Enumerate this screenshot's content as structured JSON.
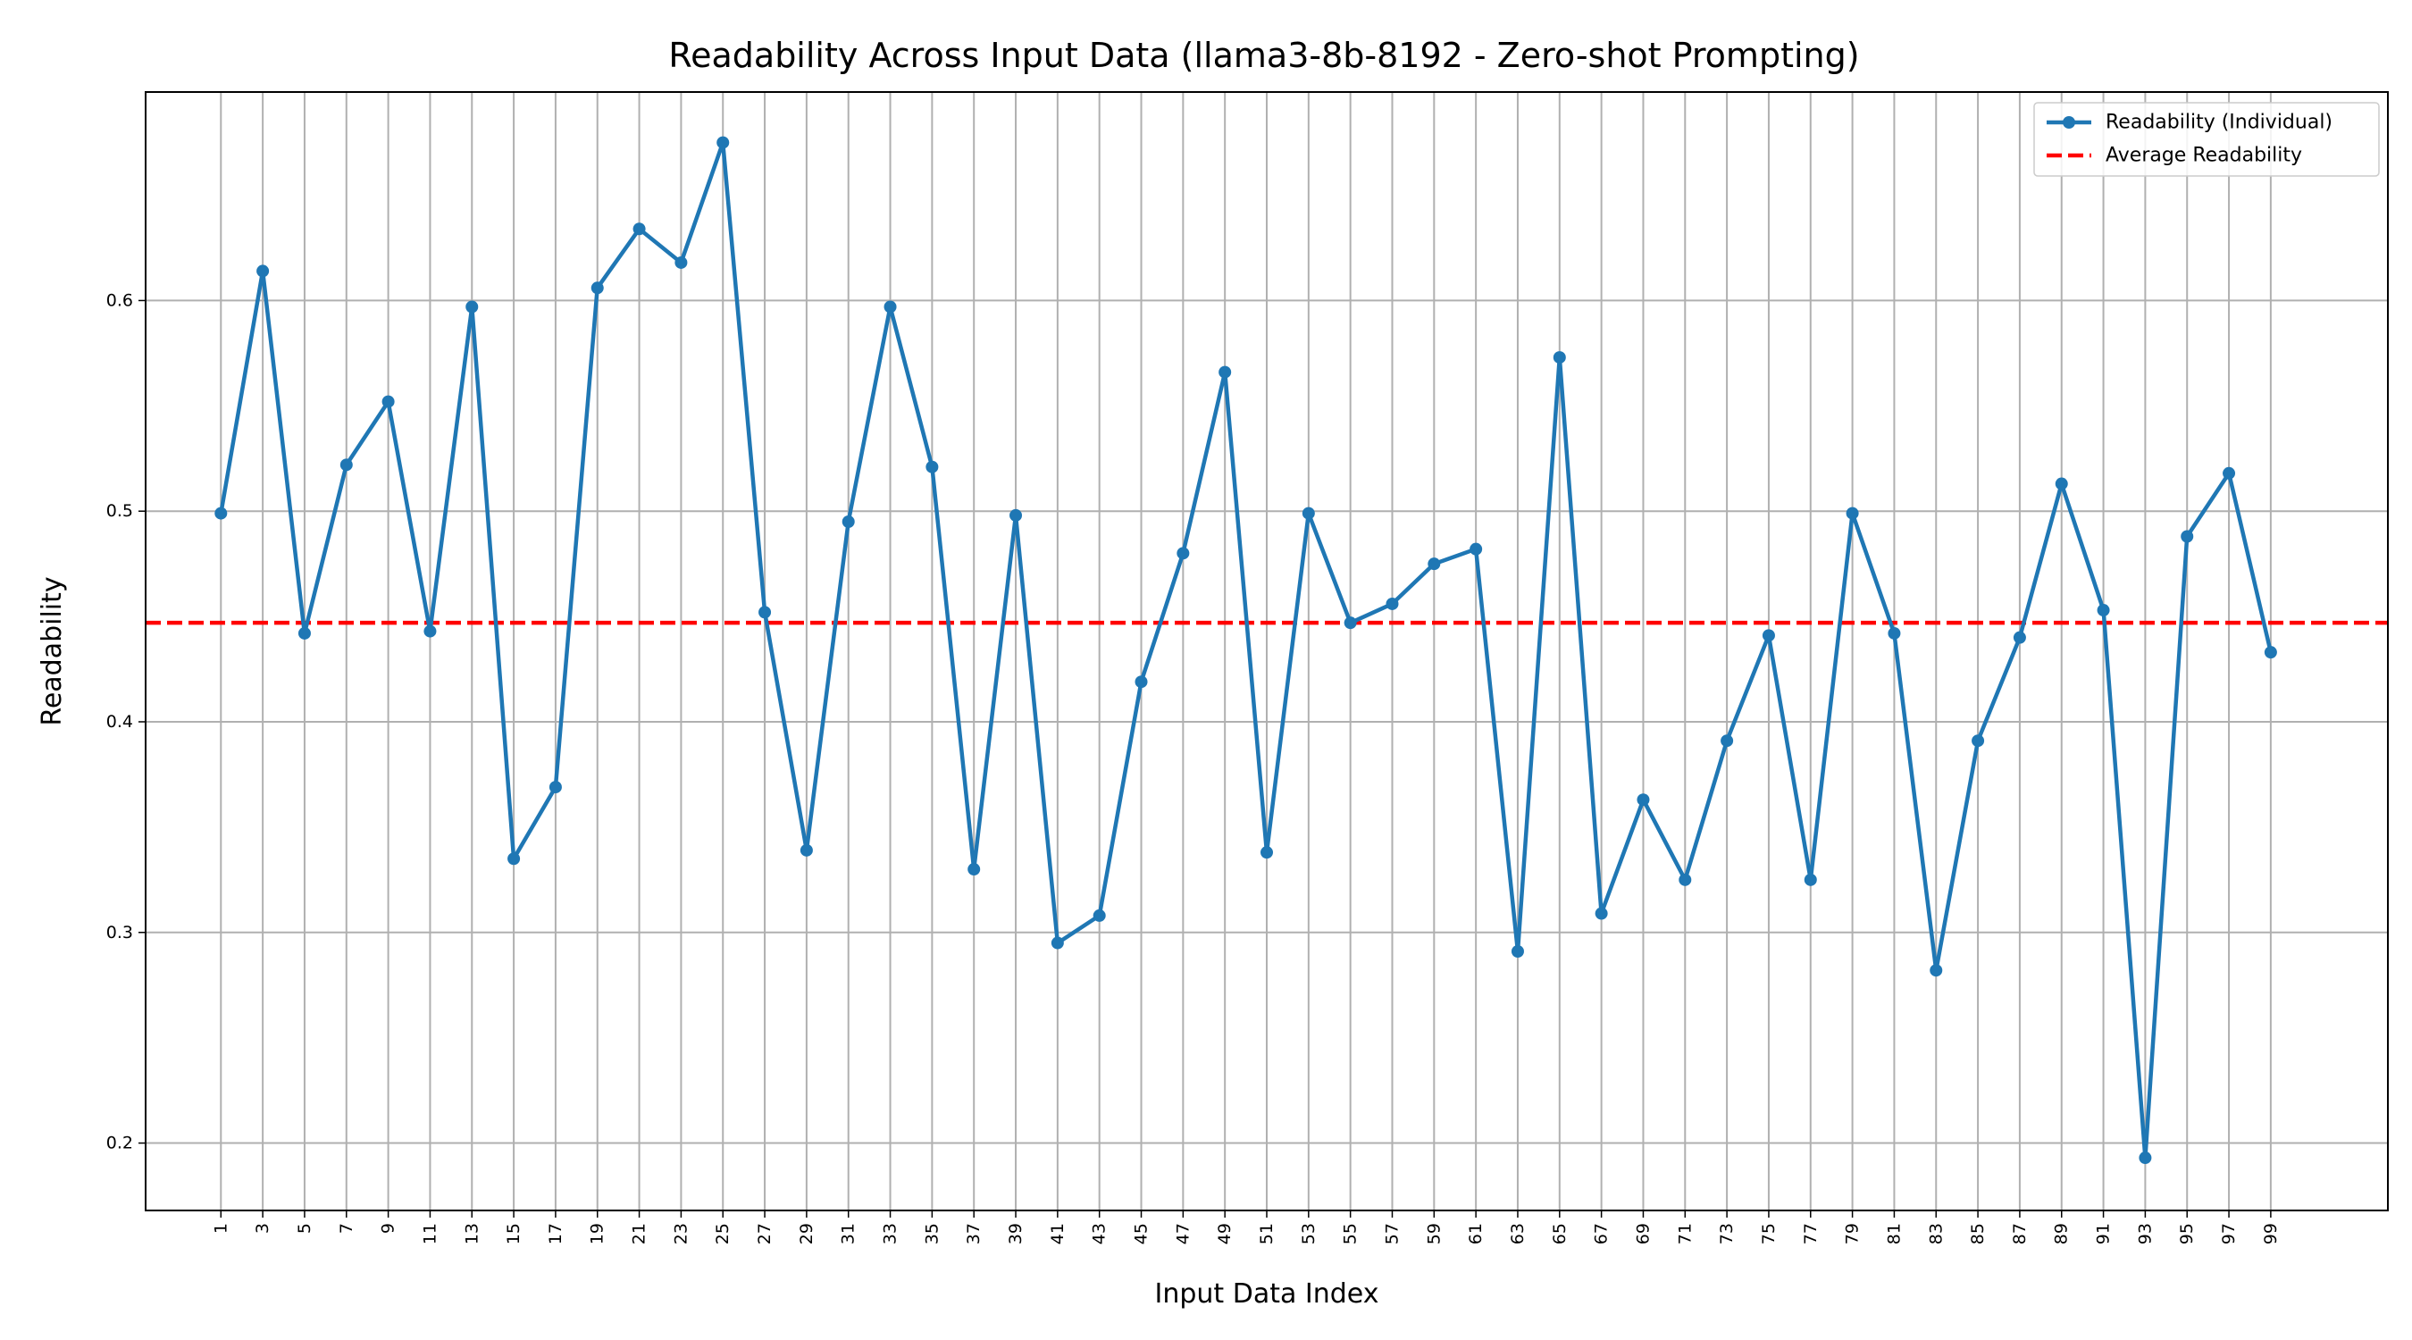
{
  "chart_data": {
    "type": "line",
    "title": "Readability Across Input Data (llama3-8b-8192 - Zero-shot Prompting)",
    "xlabel": "Input Data Index",
    "ylabel": "Readability",
    "x": [
      1,
      3,
      5,
      7,
      9,
      11,
      13,
      15,
      17,
      19,
      21,
      23,
      25,
      27,
      29,
      31,
      33,
      35,
      37,
      39,
      41,
      43,
      45,
      47,
      49,
      51,
      53,
      55,
      57,
      59,
      61,
      63,
      65,
      67,
      69,
      71,
      73,
      75,
      77,
      79,
      81,
      83,
      85,
      87,
      89,
      91,
      93,
      95,
      97,
      99
    ],
    "xticks": [
      "1",
      "3",
      "5",
      "7",
      "9",
      "11",
      "13",
      "15",
      "17",
      "19",
      "21",
      "23",
      "25",
      "27",
      "29",
      "31",
      "33",
      "35",
      "37",
      "39",
      "41",
      "43",
      "45",
      "47",
      "49",
      "51",
      "53",
      "55",
      "57",
      "59",
      "61",
      "63",
      "65",
      "67",
      "69",
      "71",
      "73",
      "75",
      "77",
      "79",
      "81",
      "83",
      "85",
      "87",
      "89",
      "91",
      "93",
      "95",
      "97",
      "99"
    ],
    "yticks": [
      "0.2",
      "0.3",
      "0.4",
      "0.5",
      "0.6"
    ],
    "ytick_values": [
      0.2,
      0.3,
      0.4,
      0.5,
      0.6
    ],
    "xlim": [
      -2.6,
      104.6
    ],
    "ylim": [
      0.168,
      0.699
    ],
    "series": [
      {
        "name": "Readability (Individual)",
        "color": "#1f77b4",
        "values": [
          0.499,
          0.614,
          0.442,
          0.522,
          0.552,
          0.443,
          0.597,
          0.335,
          0.369,
          0.606,
          0.634,
          0.618,
          0.675,
          0.452,
          0.339,
          0.495,
          0.597,
          0.521,
          0.33,
          0.498,
          0.295,
          0.308,
          0.419,
          0.48,
          0.566,
          0.338,
          0.499,
          0.447,
          0.456,
          0.475,
          0.482,
          0.291,
          0.573,
          0.309,
          0.363,
          0.325,
          0.391,
          0.441,
          0.325,
          0.499,
          0.442,
          0.282,
          0.391,
          0.44,
          0.513,
          0.453,
          0.193,
          0.488,
          0.518,
          0.433
        ]
      },
      {
        "name": "Average Readability",
        "color": "#ff0000",
        "value": 0.447,
        "style": "dashed"
      }
    ],
    "grid": true,
    "legend_position": "top-right"
  }
}
